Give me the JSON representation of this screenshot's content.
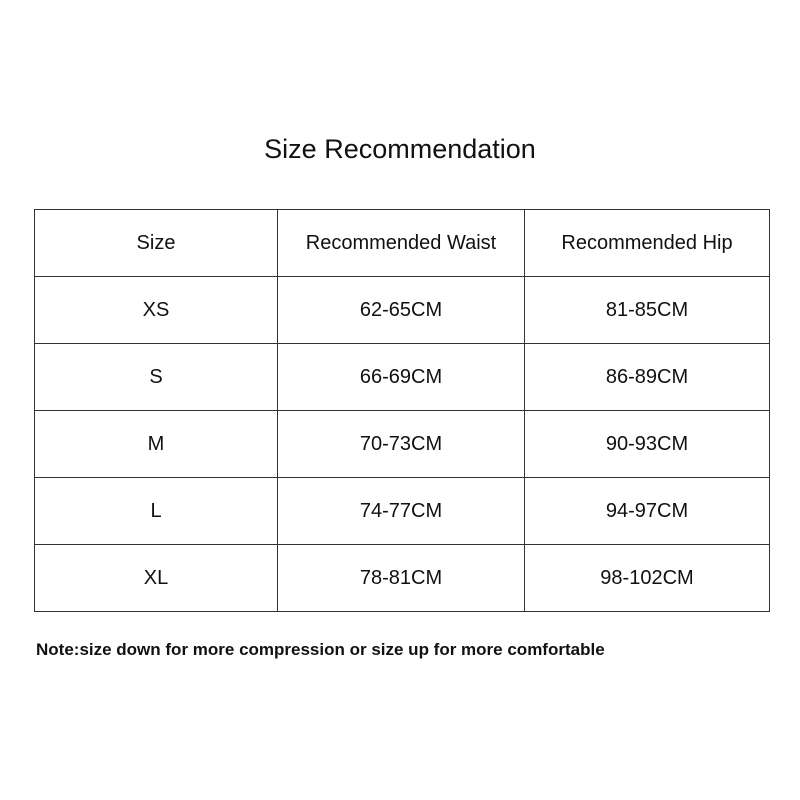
{
  "title": "Size Recommendation",
  "headers": [
    "Size",
    "Recommended Waist",
    "Recommended Hip"
  ],
  "rows": [
    [
      "XS",
      "62-65CM",
      "81-85CM"
    ],
    [
      "S",
      "66-69CM",
      "86-89CM"
    ],
    [
      "M",
      "70-73CM",
      "90-93CM"
    ],
    [
      "L",
      "74-77CM",
      "94-97CM"
    ],
    [
      "XL",
      "78-81CM",
      "98-102CM"
    ]
  ],
  "note": "Note:size down for more compression or size up for more comfortable"
}
